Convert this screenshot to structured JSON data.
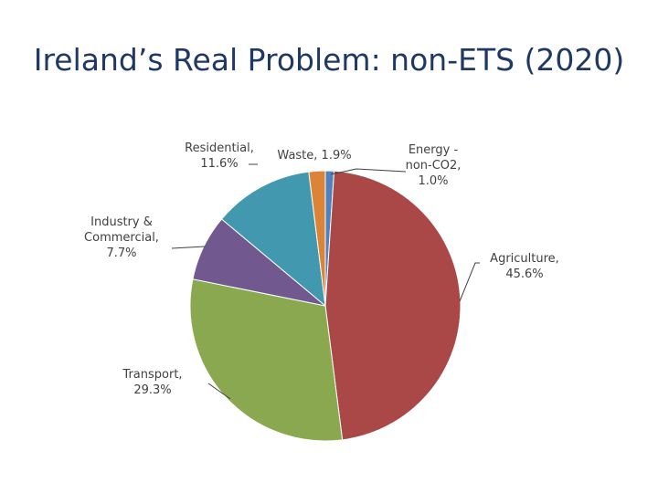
{
  "slide": {
    "title": "Ireland’s Real Problem: non-ETS (2020)"
  },
  "chart_data": {
    "type": "pie",
    "title": "",
    "slices": [
      {
        "label": [
          "Energy -",
          "non-CO2,",
          "1.0%"
        ],
        "value": 1.0,
        "color": "#4f81bd"
      },
      {
        "label": [
          "Agriculture,",
          "45.6%"
        ],
        "value": 45.6,
        "color": "#a94847"
      },
      {
        "label": [
          "Transport,",
          "29.3%"
        ],
        "value": 29.3,
        "color": "#8aa84f"
      },
      {
        "label": [
          "Industry &",
          "Commercial,",
          "7.7%"
        ],
        "value": 7.7,
        "color": "#71588f"
      },
      {
        "label": [
          "Residential,",
          "11.6%"
        ],
        "value": 11.6,
        "color": "#4198af"
      },
      {
        "label": [
          "Waste, 1.9%"
        ],
        "value": 1.9,
        "color": "#db8438"
      }
    ]
  }
}
